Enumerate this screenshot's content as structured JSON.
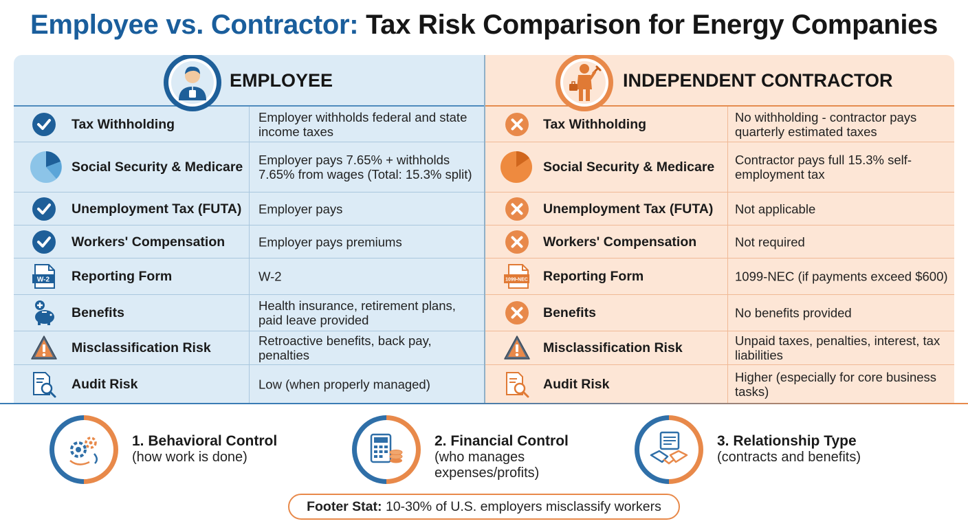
{
  "title": {
    "part1": "Employee vs. Contractor:",
    "part2": "Tax Risk Comparison for Energy Companies"
  },
  "employee": {
    "header": "EMPLOYEE",
    "header_icon": "employee-badge-icon",
    "rows": [
      {
        "icon": "check-icon",
        "label": "Tax Withholding",
        "desc": "Employer withholds federal and state income taxes"
      },
      {
        "icon": "pie-chart-icon",
        "label": "Social Security & Medicare",
        "desc": "Employer pays 7.65% + withholds 7.65% from wages (Total: 15.3% split)"
      },
      {
        "icon": "check-icon",
        "label": "Unemployment Tax (FUTA)",
        "desc": "Employer pays"
      },
      {
        "icon": "check-icon",
        "label": "Workers' Compensation",
        "desc": "Employer pays premiums"
      },
      {
        "icon": "document-icon",
        "icon_text": "W-2",
        "label": "Reporting Form",
        "desc": "W-2"
      },
      {
        "icon": "piggy-bank-icon",
        "label": "Benefits",
        "desc": "Health insurance, retirement plans, paid leave provided"
      },
      {
        "icon": "warning-icon",
        "label": "Misclassification Risk",
        "desc": "Retroactive benefits, back pay, penalties"
      },
      {
        "icon": "audit-magnifier-icon",
        "label": "Audit Risk",
        "desc": "Low (when properly managed)"
      }
    ]
  },
  "contractor": {
    "header": "INDEPENDENT CONTRACTOR",
    "header_icon": "contractor-worker-icon",
    "rows": [
      {
        "icon": "x-circle-icon",
        "label": "Tax Withholding",
        "desc": "No withholding - contractor pays quarterly estimated taxes"
      },
      {
        "icon": "pie-chart-icon",
        "label": "Social Security & Medicare",
        "desc": "Contractor pays full 15.3% self-employment tax"
      },
      {
        "icon": "x-circle-icon",
        "label": "Unemployment Tax (FUTA)",
        "desc": "Not applicable"
      },
      {
        "icon": "x-circle-icon",
        "label": "Workers' Compensation",
        "desc": "Not required"
      },
      {
        "icon": "document-icon",
        "icon_text": "1099-NEC",
        "label": "Reporting Form",
        "desc": "1099-NEC (if payments exceed $600)"
      },
      {
        "icon": "x-circle-icon",
        "label": "Benefits",
        "desc": "No benefits provided"
      },
      {
        "icon": "warning-icon",
        "label": "Misclassification Risk",
        "desc": "Unpaid taxes, penalties, interest, tax liabilities"
      },
      {
        "icon": "audit-magnifier-icon",
        "label": "Audit Risk",
        "desc": "Higher (especially for core business tasks)"
      }
    ]
  },
  "factors": [
    {
      "icon": "gears-icon",
      "title": "1. Behavioral Control",
      "desc": "(how work is done)"
    },
    {
      "icon": "calculator-coins-icon",
      "title": "2. Financial Control",
      "desc": "(who manages expenses/profits)"
    },
    {
      "icon": "handshake-contract-icon",
      "title": "3. Relationship Type",
      "desc": "(contracts and benefits)"
    }
  ],
  "footer": {
    "label": "Footer Stat:",
    "text": "10-30% of U.S. employers misclassify workers"
  },
  "colors": {
    "blue": "#1a5e9c",
    "orange": "#e8894a",
    "employee_bg": "#dcebf6",
    "contractor_bg": "#fde6d6"
  }
}
